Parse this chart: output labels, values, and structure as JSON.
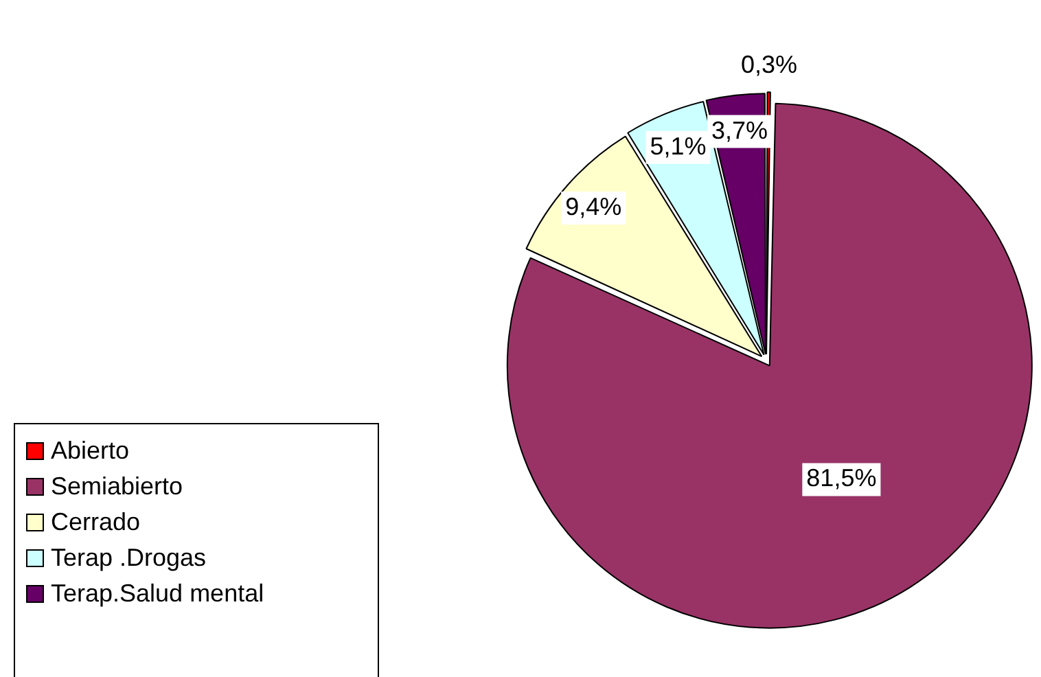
{
  "chart_data": {
    "type": "pie",
    "categories": [
      "Abierto",
      "Semiabierto",
      "Cerrado",
      "Terap .Drogas",
      "Terap.Salud mental"
    ],
    "values": [
      0.3,
      81.5,
      9.4,
      5.1,
      3.7
    ],
    "colors": [
      "#ff0000",
      "#993366",
      "#ffffcc",
      "#ccffff",
      "#660066"
    ],
    "value_labels": [
      "0,3%",
      "81,5%",
      "9,4%",
      "5,1%",
      "3,7%"
    ],
    "legend": "bottom left"
  }
}
